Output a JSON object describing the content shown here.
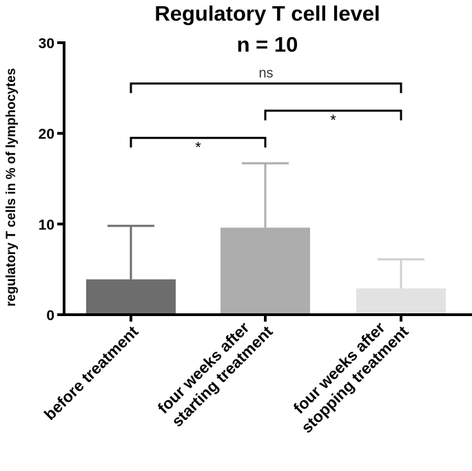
{
  "chart_data": {
    "type": "bar",
    "title": "Regulatory T cell level",
    "subtitle": "n = 10",
    "xlabel": "",
    "ylabel": "regulatory T cells in % of lymphocytes",
    "ylim": [
      0,
      30
    ],
    "yticks": [
      0,
      10,
      20,
      30
    ],
    "categories": [
      [
        "before treatment"
      ],
      [
        "four weeks after",
        "starting treatment"
      ],
      [
        "four weeks after",
        "stopping treatment"
      ]
    ],
    "values": [
      3.9,
      9.6,
      2.9
    ],
    "error_upper": [
      9.8,
      16.7,
      6.1
    ],
    "bar_colors": [
      "#6d6d6d",
      "#adadad",
      "#e2e2e2"
    ],
    "error_colors": [
      "#6d6d6d",
      "#adadad",
      "#d0d0d0"
    ],
    "grid": false,
    "legend": "none",
    "significance": [
      {
        "from": 0,
        "to": 2,
        "y": 25.5,
        "label": "ns"
      },
      {
        "from": 0,
        "to": 1,
        "y": 19.5,
        "label": "*"
      },
      {
        "from": 1,
        "to": 2,
        "y": 22.5,
        "label": "*"
      }
    ]
  }
}
